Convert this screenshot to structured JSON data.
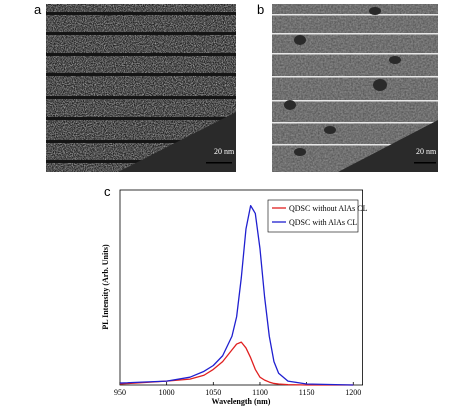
{
  "panel_labels": [
    "a",
    "b",
    "c"
  ],
  "scale_bars": [
    "20 nm",
    "20 nm"
  ],
  "chart_data": {
    "type": "line",
    "xlabel": "Wavelength (nm)",
    "ylabel": "PL Intensity (Arb. Units)",
    "x": [
      950,
      1000,
      1025,
      1040,
      1050,
      1060,
      1070,
      1075,
      1080,
      1085,
      1090,
      1095,
      1100,
      1105,
      1110,
      1115,
      1120,
      1130,
      1150,
      1200
    ],
    "series": [
      {
        "name": "QDSC without AlAs CL",
        "color": "#e02020",
        "values": [
          0.005,
          0.02,
          0.03,
          0.05,
          0.08,
          0.12,
          0.18,
          0.21,
          0.22,
          0.19,
          0.14,
          0.08,
          0.04,
          0.025,
          0.015,
          0.008,
          0.005,
          0.002,
          0,
          0
        ]
      },
      {
        "name": "QDSC with AlAs CL",
        "color": "#2020d0",
        "values": [
          0.01,
          0.02,
          0.04,
          0.07,
          0.1,
          0.15,
          0.25,
          0.35,
          0.55,
          0.8,
          0.92,
          0.88,
          0.7,
          0.45,
          0.25,
          0.12,
          0.06,
          0.02,
          0.005,
          0
        ]
      }
    ],
    "xlim": [
      950,
      1210
    ],
    "ylim": [
      0,
      1
    ],
    "xticks": [
      950,
      1000,
      1050,
      1100,
      1150,
      1200
    ],
    "legend": "upper right"
  }
}
